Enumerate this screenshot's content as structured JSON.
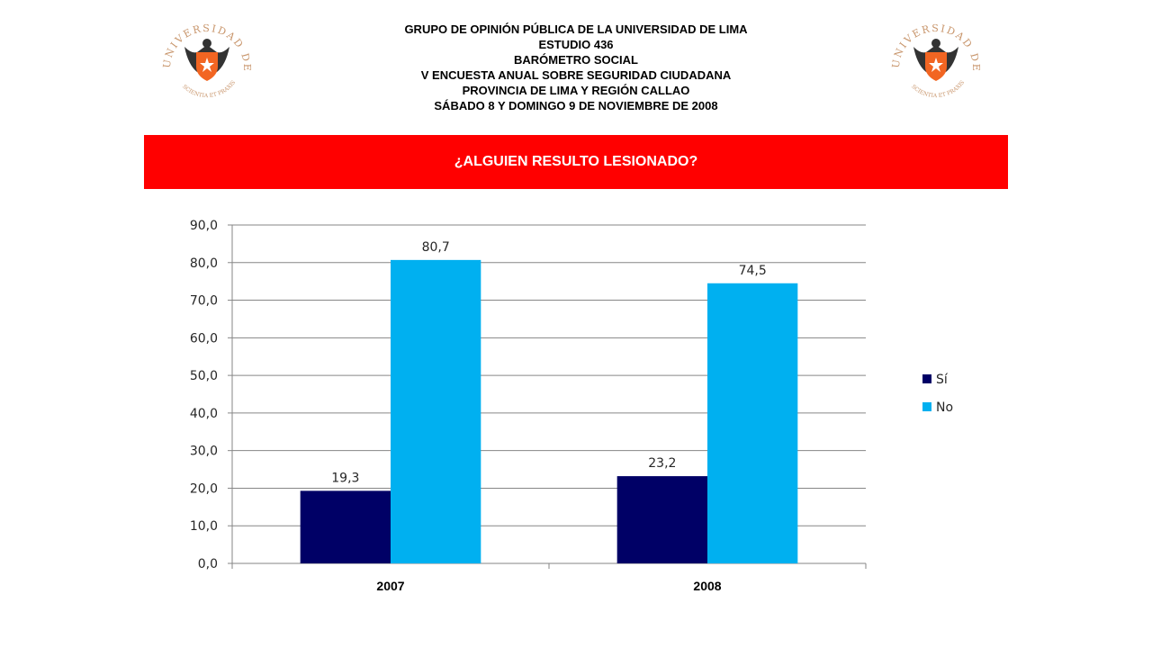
{
  "header": {
    "lines": [
      "GRUPO DE OPINIÓN PÚBLICA DE LA UNIVERSIDAD DE LIMA",
      "ESTUDIO 436",
      "BARÓMETRO SOCIAL",
      "V ENCUESTA ANUAL SOBRE SEGURIDAD CIUDADANA",
      "PROVINCIA DE LIMA Y REGIÓN CALLAO",
      "SÁBADO 8 Y DOMINGO 9 DE NOVIEMBRE DE 2008"
    ]
  },
  "logo": {
    "arc_text": "UNIVERSIDAD DE LIMA",
    "motto": "SCIENTIA ET PRAXIS",
    "text_color": "#c8956b",
    "shield_color": "#f26522"
  },
  "banner": {
    "title": "¿ALGUIEN RESULTO LESIONADO?",
    "color": "#ff0000"
  },
  "chart_data": {
    "type": "bar",
    "title": "¿ALGUIEN RESULTO LESIONADO?",
    "categories": [
      "2007",
      "2008"
    ],
    "series": [
      {
        "name": "Sí",
        "values": [
          19.3,
          23.2
        ],
        "labels": [
          "19,3",
          "23,2"
        ],
        "color": "#000066"
      },
      {
        "name": "No",
        "values": [
          80.7,
          74.5
        ],
        "labels": [
          "80,7",
          "74,5"
        ],
        "color": "#00b0f0"
      }
    ],
    "ylim": [
      0,
      90
    ],
    "yticks": [
      "0,0",
      "10,0",
      "20,0",
      "30,0",
      "40,0",
      "50,0",
      "60,0",
      "70,0",
      "80,0",
      "90,0"
    ],
    "grid": true,
    "legend": "right"
  }
}
